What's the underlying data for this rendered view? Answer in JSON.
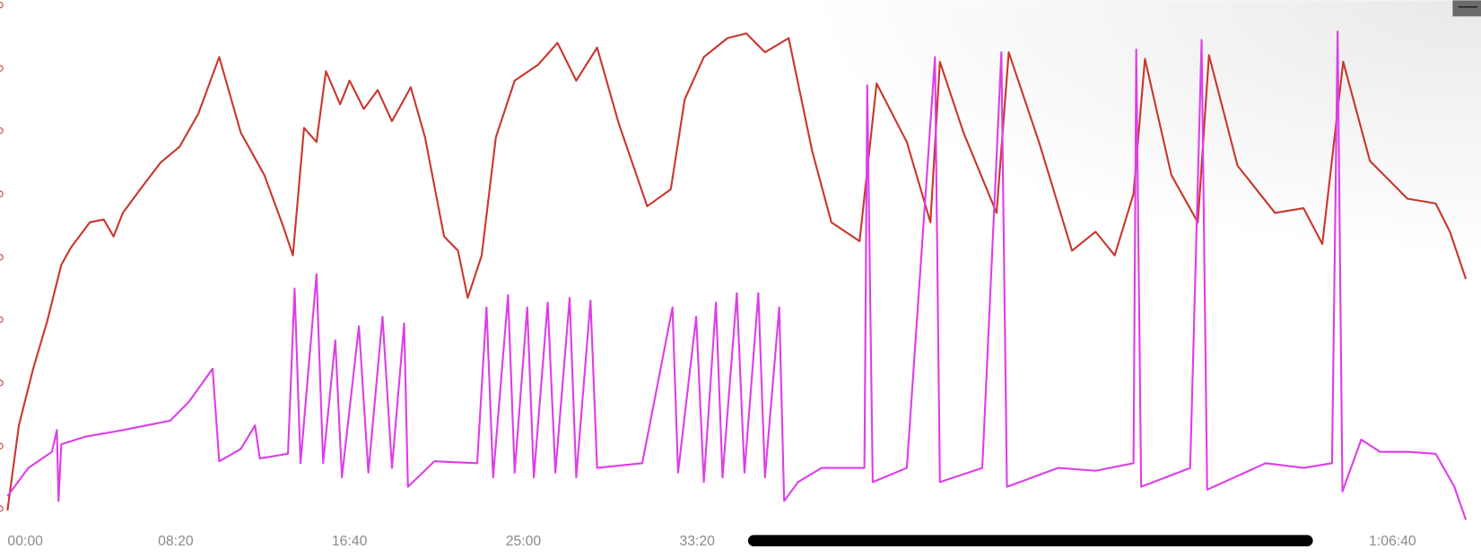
{
  "chart_data": {
    "type": "line",
    "xlim": [
      0,
      4480
    ],
    "ylim": [
      0,
      110
    ],
    "xticks": [
      {
        "value": 0,
        "label": "00:00"
      },
      {
        "value": 500,
        "label": "08:20"
      },
      {
        "value": 1000,
        "label": "16:40"
      },
      {
        "value": 1500,
        "label": "25:00"
      },
      {
        "value": 2000,
        "label": "33:20"
      },
      {
        "value": 4000,
        "label": "1:06:40"
      }
    ],
    "series": [
      {
        "color": "#c8372d",
        "x": [
          16,
          49,
          90,
          130,
          171,
          198,
          253,
          293,
          321,
          348,
          402,
          456,
          511,
          565,
          625,
          687,
          755,
          810,
          837,
          869,
          905,
          932,
          973,
          1000,
          1041,
          1081,
          1122,
          1176,
          1217,
          1272,
          1312,
          1340,
          1380,
          1421,
          1475,
          1543,
          1598,
          1652,
          1712,
          1774,
          1856,
          1924,
          1964,
          2019,
          2087,
          2141,
          2195,
          2263,
          2331,
          2386,
          2467,
          2516,
          2603,
          2671,
          2698,
          2766,
          2861,
          2896,
          2983,
          3078,
          3146,
          3201,
          3255,
          3288,
          3364,
          3440,
          3472,
          3554,
          3662,
          3744,
          3798,
          3858,
          3935,
          4043,
          4124,
          4165,
          4211
        ],
        "values": [
          4,
          22,
          34,
          44,
          56,
          59.6,
          65,
          65.6,
          62,
          67,
          72.4,
          77.6,
          81,
          88,
          100,
          84,
          75,
          64,
          58,
          85,
          82,
          97,
          90,
          95,
          89,
          93,
          86.4,
          93.6,
          83,
          62,
          59,
          49,
          58,
          83,
          95,
          98.4,
          103,
          95,
          102,
          86,
          68.4,
          72,
          91,
          100,
          104,
          105,
          101,
          104,
          80,
          65,
          61,
          94.4,
          82,
          65,
          99,
          84,
          67,
          101,
          82,
          59,
          63,
          58,
          71,
          99.6,
          75,
          65,
          100.4,
          77,
          67,
          68,
          60.4,
          99,
          78,
          70,
          69,
          63,
          53
        ]
      },
      {
        "color": "#dd3ee8",
        "x": [
          16,
          76,
          144,
          158,
          163,
          171,
          239,
          348,
          484,
          538,
          606,
          625,
          687,
          728,
          742,
          823,
          842,
          859,
          905,
          924,
          959,
          978,
          1027,
          1054,
          1095,
          1122,
          1157,
          1168,
          1244,
          1367,
          1394,
          1413,
          1456,
          1475,
          1511,
          1530,
          1570,
          1592,
          1633,
          1652,
          1693,
          1712,
          1842,
          1929,
          1945,
          1997,
          2019,
          2054,
          2073,
          2114,
          2136,
          2176,
          2195,
          2236,
          2250,
          2290,
          2358,
          2481,
          2489,
          2505,
          2603,
          2684,
          2698,
          2820,
          2875,
          2891,
          3038,
          3146,
          3255,
          3263,
          3277,
          3418,
          3451,
          3467,
          3635,
          3744,
          3826,
          3842,
          3856,
          3910,
          3964,
          4043,
          4124,
          4178,
          4211
        ],
        "values": [
          7,
          13,
          16.4,
          21,
          6,
          18,
          19.6,
          21,
          23,
          27,
          34,
          14.4,
          17,
          22,
          15,
          16,
          51,
          14,
          54,
          14,
          40,
          11,
          43,
          12,
          45,
          13,
          43.6,
          9,
          14.4,
          14,
          47,
          11,
          49.6,
          12,
          47,
          11,
          48,
          12,
          49,
          11,
          48.4,
          13,
          14,
          47,
          12,
          45,
          10,
          48,
          11,
          50,
          12,
          50,
          11,
          47,
          6,
          10,
          13,
          13,
          94,
          10,
          13,
          100,
          10,
          13,
          101,
          9,
          13,
          12.4,
          14,
          101.6,
          9,
          13,
          103.6,
          8.4,
          14,
          13,
          14,
          105.4,
          8,
          19,
          16.4,
          16.4,
          16,
          9,
          2
        ]
      }
    ]
  }
}
